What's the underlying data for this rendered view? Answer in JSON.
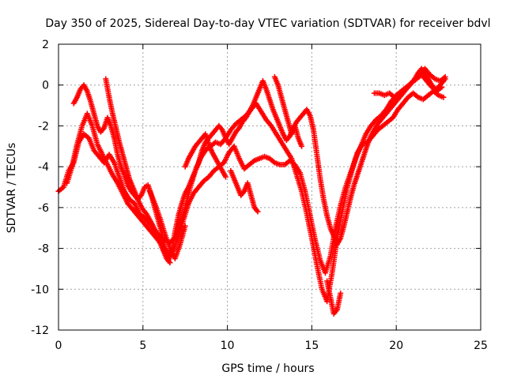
{
  "chart_data": {
    "type": "scatter",
    "title": "Day 350 of 2025, Sidereal Day-to-day VTEC variation (SDTVAR) for receiver bdvl",
    "xlabel": "GPS time / hours",
    "ylabel": "SDTVAR / TECUs",
    "xlim": [
      0,
      25
    ],
    "ylim": [
      -12,
      2
    ],
    "x_ticks": [
      0,
      5,
      10,
      15,
      20,
      25
    ],
    "x_tick_labels": [
      "0",
      "5",
      "10",
      "15",
      "20",
      "25"
    ],
    "y_ticks": [
      -12,
      -10,
      -8,
      -6,
      -4,
      -2,
      0,
      2
    ],
    "y_tick_labels": [
      "-12",
      "-10",
      "-8",
      "-6",
      "-4",
      "-2",
      "0",
      "2"
    ],
    "grid": true,
    "marker": "plus",
    "color": "#ff0000",
    "series": [
      {
        "x": [
          0.0,
          0.3,
          0.6,
          0.9,
          1.2,
          1.5,
          1.8,
          2.1,
          2.4,
          2.7,
          3.0,
          3.3,
          3.6,
          3.9,
          4.2,
          4.5,
          4.8,
          5.1,
          5.4,
          5.7,
          6.0,
          6.3,
          6.6,
          6.9,
          7.2,
          7.5,
          7.8,
          8.1,
          8.4,
          8.7,
          9.0,
          9.3,
          9.6,
          9.9,
          10.2,
          10.5,
          10.8,
          11.1,
          11.4,
          11.7,
          12.0,
          12.3,
          12.6,
          12.9,
          13.2,
          13.5,
          13.8,
          14.1,
          14.4,
          14.7,
          15.0,
          15.3,
          15.6,
          15.9,
          16.2,
          16.5,
          16.8,
          17.1,
          17.4,
          17.7,
          18.0,
          18.3,
          18.6,
          18.9,
          19.2,
          19.5,
          19.8,
          20.1,
          20.4,
          20.7,
          21.0,
          21.3,
          21.6,
          21.9,
          22.2,
          22.5,
          22.8
        ],
        "y": [
          -5.2,
          -5.0,
          -4.2,
          -3.8,
          -2.8,
          -2.4,
          -2.6,
          -3.2,
          -3.5,
          -3.8,
          -3.4,
          -3.8,
          -4.5,
          -5.2,
          -5.6,
          -5.8,
          -6.3,
          -6.5,
          -6.8,
          -7.1,
          -7.4,
          -7.6,
          -7.7,
          -7.5,
          -6.8,
          -6.0,
          -5.0,
          -4.2,
          -3.6,
          -3.2,
          -3.0,
          -2.8,
          -2.9,
          -2.6,
          -2.2,
          -1.9,
          -1.7,
          -1.5,
          -1.2,
          -0.9,
          -1.3,
          -1.7,
          -2.0,
          -2.4,
          -2.8,
          -3.2,
          -3.6,
          -4.4,
          -5.2,
          -6.3,
          -7.5,
          -8.8,
          -10.0,
          -10.6,
          -9.2,
          -7.5,
          -6.2,
          -5.0,
          -4.1,
          -3.3,
          -2.9,
          -2.8,
          -2.5,
          -2.2,
          -2.0,
          -1.8,
          -1.6,
          -1.2,
          -0.9,
          -0.6,
          -0.4,
          -0.6,
          -0.7,
          -0.5,
          -0.3,
          -0.5,
          -0.6
        ]
      },
      {
        "x": [
          0.5,
          0.8,
          1.1,
          1.4,
          1.7,
          2.0,
          2.3,
          2.6,
          2.9,
          3.2,
          3.5,
          3.8,
          4.1,
          4.4,
          4.7,
          5.0,
          5.3,
          5.6,
          5.9,
          6.2,
          6.5,
          6.8,
          7.1,
          7.4,
          7.7,
          8.0,
          8.3,
          8.6,
          8.9,
          9.2,
          9.5,
          9.8,
          10.1,
          10.4,
          10.7,
          11.0,
          11.3,
          11.6,
          11.9,
          12.2,
          12.5,
          12.8,
          13.1,
          13.4,
          13.7,
          14.0,
          14.3,
          14.6,
          14.9,
          15.2,
          15.5,
          15.8,
          16.1,
          16.4,
          16.7,
          17.0,
          17.3,
          17.6,
          17.9,
          18.2,
          18.5,
          18.8,
          19.1,
          19.4,
          19.7,
          20.0,
          20.3,
          20.6,
          20.9,
          21.2,
          21.5,
          21.8,
          22.1,
          22.4,
          22.7
        ],
        "y": [
          -4.8,
          -4.0,
          -2.9,
          -2.0,
          -1.4,
          -2.0,
          -2.9,
          -3.4,
          -3.9,
          -4.4,
          -4.8,
          -5.3,
          -5.8,
          -6.1,
          -6.4,
          -6.7,
          -7.0,
          -7.3,
          -7.6,
          -7.9,
          -8.3,
          -8.1,
          -7.4,
          -6.6,
          -5.8,
          -5.3,
          -5.0,
          -4.7,
          -4.5,
          -4.2,
          -4.0,
          -3.8,
          -3.3,
          -3.0,
          -3.6,
          -4.1,
          -3.9,
          -3.7,
          -3.6,
          -3.5,
          -3.6,
          -3.8,
          -3.9,
          -3.9,
          -3.7,
          -3.9,
          -4.3,
          -5.2,
          -6.4,
          -7.6,
          -8.6,
          -9.2,
          -8.4,
          -7.0,
          -5.9,
          -5.0,
          -4.3,
          -3.6,
          -3.0,
          -2.4,
          -2.0,
          -1.7,
          -1.5,
          -1.2,
          -0.8,
          -0.5,
          -0.3,
          -0.1,
          0.1,
          0.3,
          0.5,
          0.2,
          -0.1,
          -0.3,
          -0.1
        ]
      },
      {
        "x": [
          0.9,
          1.1,
          1.3,
          1.5,
          1.7,
          1.9,
          2.1,
          2.3,
          2.5,
          2.7,
          2.9,
          3.1,
          3.3,
          3.5,
          3.7,
          3.9,
          4.1,
          4.3,
          4.5,
          4.7,
          4.9,
          5.1,
          5.3,
          5.5,
          5.7,
          5.9,
          6.1,
          6.3,
          6.5,
          6.7,
          6.9,
          7.1,
          7.3,
          7.5,
          7.7,
          7.9,
          8.1,
          8.3,
          8.5,
          8.7,
          8.9,
          9.1,
          9.3,
          9.5,
          9.7,
          9.9,
          10.1,
          10.3,
          10.5,
          10.7,
          10.9,
          11.1,
          11.3,
          11.5,
          11.7,
          11.9,
          12.1,
          12.3,
          12.5,
          12.7,
          12.9,
          13.1,
          13.3,
          13.5,
          13.7,
          13.9,
          14.1,
          14.3,
          14.5,
          14.7,
          14.9,
          15.1,
          15.3,
          15.5,
          15.7,
          15.9,
          16.1,
          16.3,
          16.5,
          16.7,
          16.9,
          17.1,
          17.3,
          17.5,
          17.7,
          17.9,
          18.1,
          18.3,
          18.5,
          18.7,
          18.9,
          19.1,
          19.3,
          19.5,
          19.7,
          19.9,
          20.1,
          20.3,
          20.5,
          20.7,
          20.9,
          21.1,
          21.3,
          21.5,
          21.7,
          21.9,
          22.1,
          22.3,
          22.5,
          22.7,
          22.9
        ],
        "y": [
          -0.9,
          -0.6,
          -0.2,
          0.0,
          -0.3,
          -0.8,
          -1.4,
          -2.0,
          -2.3,
          -2.1,
          -1.6,
          -2.0,
          -2.6,
          -3.4,
          -4.0,
          -4.4,
          -4.9,
          -5.2,
          -5.4,
          -5.6,
          -5.4,
          -5.0,
          -4.9,
          -5.4,
          -6.0,
          -6.6,
          -7.2,
          -8.0,
          -8.6,
          -8.2,
          -7.2,
          -6.4,
          -5.8,
          -5.3,
          -5.0,
          -4.6,
          -4.2,
          -3.8,
          -3.2,
          -2.8,
          -2.6,
          -2.4,
          -2.2,
          -2.0,
          -2.2,
          -2.6,
          -2.9,
          -2.6,
          -2.3,
          -2.1,
          -1.8,
          -1.6,
          -1.3,
          -1.0,
          -0.6,
          -0.2,
          0.2,
          -0.2,
          -0.7,
          -1.2,
          -1.6,
          -2.0,
          -2.4,
          -2.7,
          -2.5,
          -2.1,
          -1.8,
          -1.6,
          -1.4,
          -1.2,
          -1.5,
          -2.2,
          -3.4,
          -4.6,
          -5.6,
          -6.4,
          -7.0,
          -7.4,
          -7.8,
          -7.5,
          -6.9,
          -6.2,
          -5.5,
          -4.9,
          -4.4,
          -3.9,
          -3.4,
          -2.9,
          -2.5,
          -2.2,
          -1.9,
          -1.7,
          -1.5,
          -1.3,
          -1.1,
          -0.9,
          -0.7,
          -0.5,
          -0.3,
          -0.1,
          0.1,
          0.3,
          0.6,
          0.8,
          0.6,
          0.3,
          0.0,
          -0.2,
          -0.1,
          0.1,
          0.3
        ]
      },
      {
        "x": [
          2.8,
          3.0,
          3.2,
          3.4,
          3.6,
          3.8,
          4.0,
          4.2,
          4.4,
          4.6,
          4.8,
          5.0,
          5.2,
          5.4,
          5.6,
          5.8,
          6.0,
          6.2,
          6.4,
          6.6
        ],
        "y": [
          0.3,
          -0.6,
          -1.4,
          -2.1,
          -2.8,
          -3.4,
          -4.0,
          -4.6,
          -5.0,
          -5.4,
          -5.8,
          -6.1,
          -6.3,
          -6.6,
          -6.9,
          -7.3,
          -7.7,
          -8.1,
          -8.5,
          -8.7
        ]
      },
      {
        "x": [
          5.4,
          5.7,
          6.0,
          6.3,
          6.6,
          6.9,
          7.2,
          7.5
        ],
        "y": [
          -5.2,
          -5.8,
          -6.5,
          -7.3,
          -8.0,
          -8.5,
          -7.8,
          -6.9
        ]
      },
      {
        "x": [
          7.5,
          7.7,
          7.9,
          8.1,
          8.3,
          8.5,
          8.7,
          8.9,
          9.1,
          9.3,
          9.5,
          9.7,
          9.9
        ],
        "y": [
          -4.0,
          -3.6,
          -3.3,
          -3.0,
          -2.8,
          -2.6,
          -2.4,
          -2.9,
          -3.3,
          -3.6,
          -3.9,
          -4.2,
          -4.5
        ]
      },
      {
        "x": [
          10.2,
          10.4,
          10.6,
          10.8,
          11.0,
          11.2,
          11.4,
          11.6,
          11.8
        ],
        "y": [
          -4.2,
          -4.6,
          -5.0,
          -5.4,
          -5.2,
          -4.8,
          -5.4,
          -6.0,
          -6.2
        ]
      },
      {
        "x": [
          12.8,
          13.0,
          13.2,
          13.4,
          13.6,
          13.8,
          14.0,
          14.2,
          14.4
        ],
        "y": [
          0.4,
          0.0,
          -0.6,
          -1.2,
          -1.8,
          -2.4,
          -2.0,
          -2.6,
          -3.0
        ]
      },
      {
        "x": [
          15.9,
          16.1,
          16.3,
          16.5,
          16.7
        ],
        "y": [
          -9.6,
          -10.4,
          -11.2,
          -11.0,
          -10.2
        ]
      },
      {
        "x": [
          18.7,
          19.0,
          19.3,
          19.6,
          19.9,
          20.2,
          20.5,
          20.8,
          21.1,
          21.4,
          21.7,
          22.0,
          22.3,
          22.6,
          22.9
        ],
        "y": [
          -0.4,
          -0.4,
          -0.5,
          -0.4,
          -0.6,
          -0.4,
          -0.2,
          0.0,
          0.3,
          0.6,
          0.8,
          0.5,
          0.3,
          0.2,
          0.4
        ]
      }
    ]
  }
}
